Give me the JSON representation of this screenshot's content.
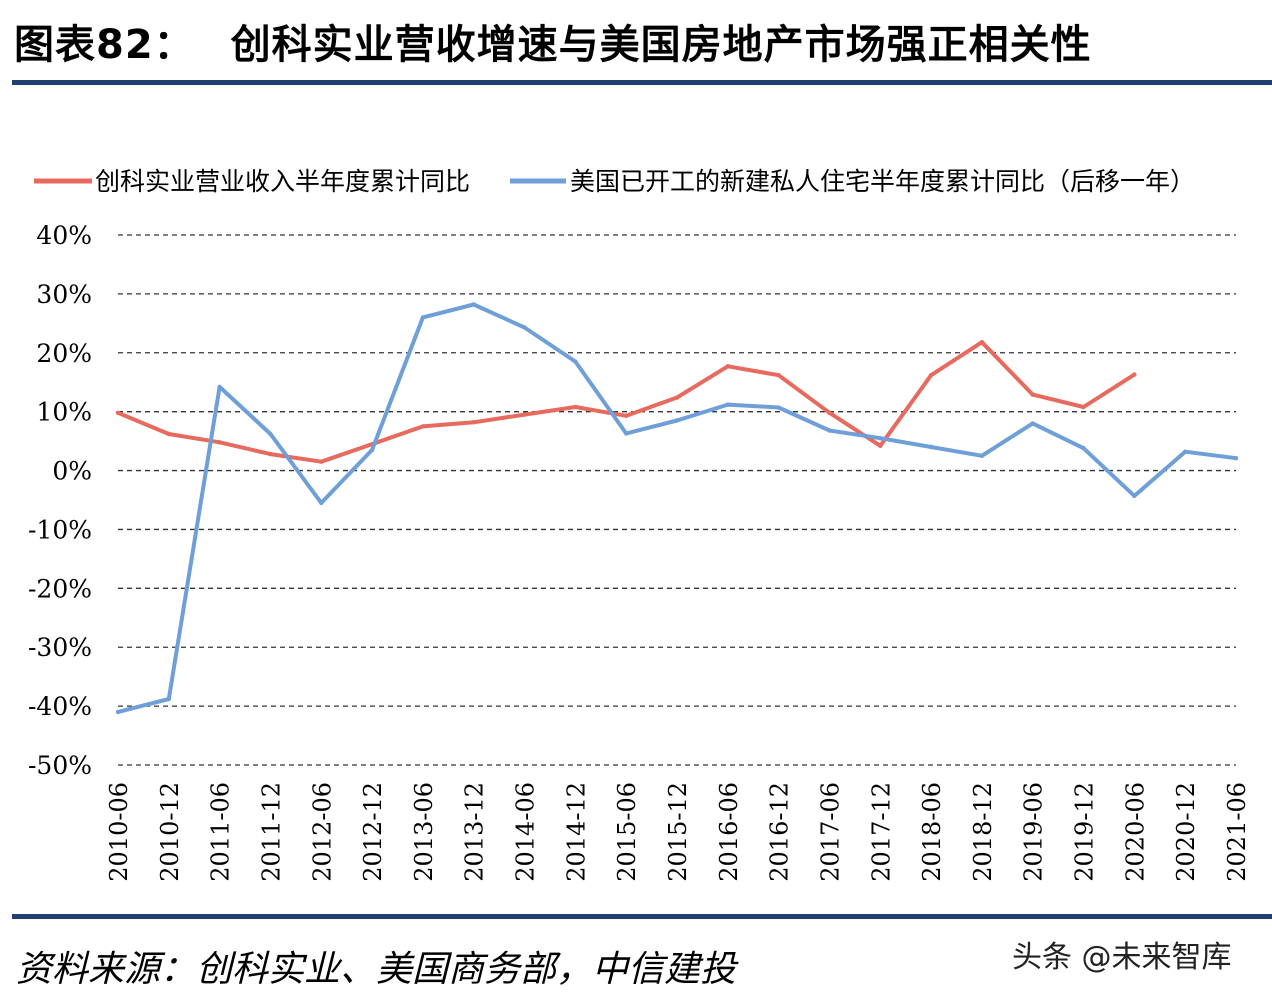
{
  "figure": {
    "label": "图表82：",
    "title": "创科实业营收增速与美国房地产市场强正相关性"
  },
  "source_text": "资料来源：创科实业、美国商务部，中信建投",
  "watermark": "头条 @未来智库",
  "colors": {
    "series_red": "#e8695e",
    "series_blue": "#6f9fd8",
    "rule": "#1f3f73"
  },
  "chart_data": {
    "type": "line",
    "ylim": [
      -0.5,
      0.4
    ],
    "yticks": [
      "40%",
      "30%",
      "20%",
      "10%",
      "0%",
      "-10%",
      "-20%",
      "-30%",
      "-40%",
      "-50%"
    ],
    "ytick_values": [
      0.4,
      0.3,
      0.2,
      0.1,
      0.0,
      -0.1,
      -0.2,
      -0.3,
      -0.4,
      -0.5
    ],
    "grid": "horizontal-dashed",
    "legend_position": "top",
    "categories": [
      "2010-06",
      "2010-12",
      "2011-06",
      "2011-12",
      "2012-06",
      "2012-12",
      "2013-06",
      "2013-12",
      "2014-06",
      "2014-12",
      "2015-06",
      "2015-12",
      "2016-06",
      "2016-12",
      "2017-06",
      "2017-12",
      "2018-06",
      "2018-12",
      "2019-06",
      "2019-12",
      "2020-06",
      "2020-12",
      "2021-06"
    ],
    "series": [
      {
        "name": "创科实业营业收入半年度累计同比",
        "color": "#e8695e",
        "values": [
          0.098,
          0.062,
          0.048,
          0.028,
          0.015,
          0.045,
          0.075,
          0.082,
          0.095,
          0.108,
          0.093,
          0.124,
          0.177,
          0.162,
          0.098,
          0.042,
          0.162,
          0.218,
          0.129,
          0.108,
          0.163,
          null,
          null
        ]
      },
      {
        "name": "美国已开工的新建私人住宅半年度累计同比（后移一年）",
        "color": "#6f9fd8",
        "values": [
          -0.41,
          -0.388,
          0.142,
          0.062,
          -0.055,
          0.035,
          0.26,
          0.282,
          0.243,
          0.185,
          0.063,
          0.085,
          0.112,
          0.107,
          0.068,
          0.055,
          0.04,
          0.025,
          0.08,
          0.038,
          -0.043,
          0.032,
          0.021
        ]
      }
    ]
  }
}
